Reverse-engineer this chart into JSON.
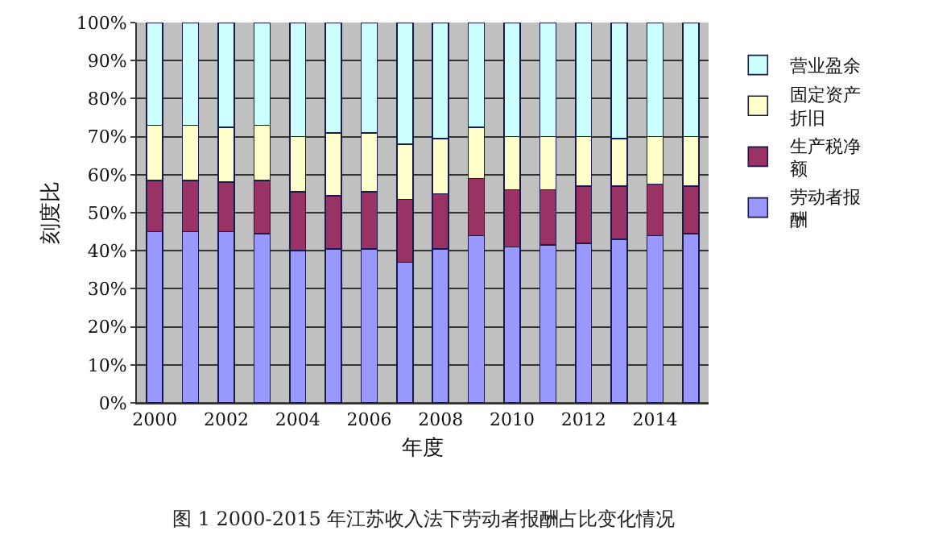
{
  "chart_data": {
    "type": "bar",
    "stacked": true,
    "xlabel": "年度",
    "ylabel": "刻度比",
    "categories": [
      "2000",
      null,
      "2002",
      null,
      "2004",
      null,
      "2006",
      null,
      "2008",
      null,
      "2010",
      null,
      "2012",
      null,
      "2014",
      null
    ],
    "ylim": [
      0,
      100
    ],
    "yticks": [
      {
        "value": 0,
        "label": "0%"
      },
      {
        "value": 10,
        "label": "10%"
      },
      {
        "value": 20,
        "label": "20%"
      },
      {
        "value": 30,
        "label": "30%"
      },
      {
        "value": 40,
        "label": "40%"
      },
      {
        "value": 50,
        "label": "50%"
      },
      {
        "value": 60,
        "label": "60%"
      },
      {
        "value": 70,
        "label": "70%"
      },
      {
        "value": 80,
        "label": "80%"
      },
      {
        "value": 90,
        "label": "90%"
      },
      {
        "value": 100,
        "label": "100%"
      }
    ],
    "grid": "y",
    "legend": "right",
    "series": [
      {
        "name": "劳动者报酬",
        "color": "#9999ff",
        "values": [
          45,
          45,
          45,
          44.5,
          40,
          40.5,
          40.5,
          37,
          40.5,
          44,
          41,
          41.5,
          42,
          43,
          44,
          44.5
        ]
      },
      {
        "name": "生产税净额",
        "color": "#993366",
        "values": [
          13.5,
          13.5,
          13,
          14,
          15.5,
          14,
          15,
          16.5,
          14.5,
          15,
          15,
          14.5,
          15,
          14,
          13.5,
          12.5
        ]
      },
      {
        "name": "固定资产折旧",
        "color": "#ffffcc",
        "values": [
          14.5,
          14.5,
          14.5,
          14.5,
          14.5,
          16.5,
          15.5,
          14.5,
          14.5,
          13.5,
          14,
          14,
          13,
          12.5,
          12.5,
          13
        ]
      },
      {
        "name": "营业盈余",
        "color": "#ccffff",
        "values": [
          27,
          27,
          27.5,
          27,
          30,
          29,
          29,
          32,
          30.5,
          27.5,
          30,
          30,
          30,
          30.5,
          30,
          30
        ]
      }
    ],
    "annotations": [
      "图 1 2000-2015 年江苏收入法下劳动者报酬占比变化情况"
    ]
  }
}
